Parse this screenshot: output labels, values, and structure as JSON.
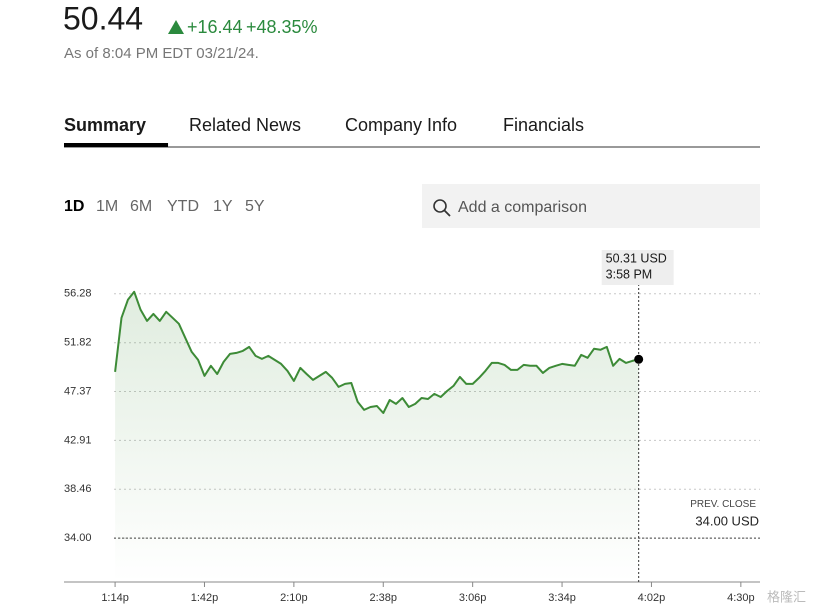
{
  "header": {
    "price": "50.44",
    "change": "+16.44",
    "change_pct": "+48.35%",
    "as_of": "As of 8:04 PM EDT 03/21/24."
  },
  "tabs": [
    "Summary",
    "Related News",
    "Company Info",
    "Financials"
  ],
  "ranges": [
    "1D",
    "1M",
    "6M",
    "YTD",
    "1Y",
    "5Y"
  ],
  "search_placeholder": "Add a comparison",
  "watermark": "格隆汇",
  "chart_data": {
    "type": "line",
    "color": "#3d8b37",
    "grid": true,
    "x": [
      794,
      796,
      798,
      800,
      802,
      804,
      806,
      808,
      810,
      812,
      814,
      816,
      818,
      820,
      822,
      824,
      826,
      828,
      830,
      832,
      834,
      836,
      838,
      840,
      842,
      844,
      846,
      848,
      850,
      852,
      854,
      856,
      858,
      860,
      862,
      864,
      866,
      868,
      870,
      872,
      874,
      876,
      878,
      880,
      882,
      884,
      886,
      888,
      890,
      892,
      894,
      896,
      898,
      900,
      902,
      904,
      906,
      908,
      910,
      912,
      914,
      916,
      918,
      920,
      922,
      924,
      926,
      928,
      930,
      932,
      934,
      936,
      938,
      940,
      942,
      944,
      946,
      948,
      950,
      952,
      954,
      956,
      958
    ],
    "values": [
      49.16,
      54.09,
      55.73,
      56.46,
      54.82,
      53.81,
      54.45,
      53.81,
      54.64,
      54.09,
      53.54,
      52.26,
      50.98,
      50.25,
      48.79,
      49.71,
      48.97,
      50.07,
      50.8,
      50.89,
      51.07,
      51.44,
      50.62,
      50.34,
      50.62,
      50.25,
      49.89,
      49.25,
      48.34,
      49.52,
      48.97,
      48.43,
      48.79,
      49.16,
      48.61,
      47.79,
      48.06,
      48.15,
      46.42,
      45.69,
      45.96,
      46.05,
      45.41,
      46.6,
      46.24,
      46.78,
      45.96,
      46.24,
      46.78,
      46.69,
      47.15,
      46.87,
      47.42,
      47.88,
      48.7,
      48.06,
      48.06,
      48.61,
      49.25,
      49.98,
      49.98,
      49.8,
      49.34,
      49.34,
      49.8,
      49.71,
      49.71,
      49.07,
      49.52,
      49.71,
      49.89,
      49.8,
      49.71,
      50.71,
      50.44,
      51.26,
      51.17,
      51.44,
      49.71,
      50.34,
      49.98,
      50.16,
      50.31
    ],
    "xlim": [
      778,
      996
    ],
    "xticks": [
      {
        "value": 794,
        "label": "1:14p"
      },
      {
        "value": 822,
        "label": "1:42p"
      },
      {
        "value": 850,
        "label": "2:10p"
      },
      {
        "value": 878,
        "label": "2:38p"
      },
      {
        "value": 906,
        "label": "3:06p"
      },
      {
        "value": 934,
        "label": "3:34p"
      },
      {
        "value": 962,
        "label": "4:02p"
      },
      {
        "value": 990,
        "label": "4:30p"
      }
    ],
    "ylim": [
      30,
      60
    ],
    "yticks": [
      {
        "value": 34,
        "label": "34.00"
      },
      38.46,
      42.91,
      47.37,
      51.82,
      56.28
    ],
    "reference": {
      "label": "PREV. CLOSE",
      "value": 34,
      "value_label": "34.00 USD"
    },
    "tooltip": {
      "x": 958,
      "value": 50.31,
      "value_label": "50.31 USD",
      "time_label": "3:58 PM"
    }
  }
}
